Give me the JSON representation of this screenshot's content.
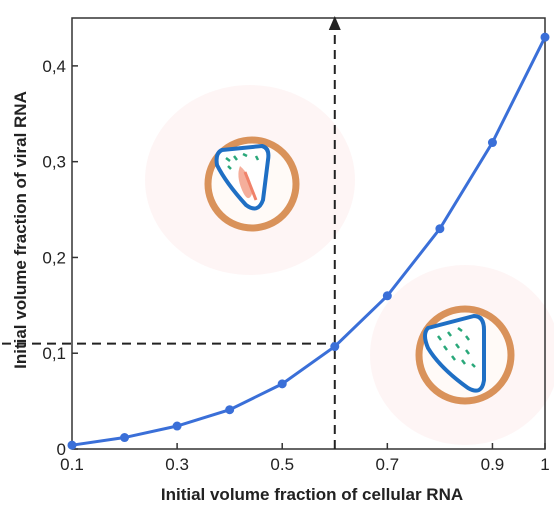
{
  "chart_data": {
    "type": "line",
    "xlabel": "Initial volume fraction of cellular RNA",
    "ylabel": "Initial volume fraction of viral RNA",
    "xlim": [
      0.1,
      1.0
    ],
    "ylim": [
      0,
      0.45
    ],
    "x_ticks": [
      "0.1",
      "0.3",
      "0.5",
      "0.7",
      "0.9",
      "1"
    ],
    "x_tick_values": [
      0.1,
      0.3,
      0.5,
      0.7,
      0.9,
      1.0
    ],
    "y_ticks": [
      "0",
      "0,1",
      "0,2",
      "0,3",
      "0,4"
    ],
    "y_tick_values": [
      0,
      0.1,
      0.2,
      0.3,
      0.4
    ],
    "grid": false,
    "series": [
      {
        "x": [
          0.1,
          0.2,
          0.3,
          0.4,
          0.5,
          0.6,
          0.7,
          0.8,
          0.9,
          1.0
        ],
        "y": [
          0.004,
          0.012,
          0.024,
          0.041,
          0.068,
          0.107,
          0.16,
          0.23,
          0.32,
          0.43
        ],
        "color": "#3a6fd8"
      }
    ],
    "annotation": {
      "x": 0.6,
      "y": 0.11,
      "style": "dashed crosshair",
      "arrow": "up"
    },
    "insets": [
      {
        "icon": "cell-with-cellular-rna-icon",
        "membrane_color": "#d9925a",
        "vesicle_color": "#1f6fc4",
        "cargo_colors": [
          "#f0826a",
          "#2aa87a"
        ]
      },
      {
        "icon": "cell-with-viral-rna-icon",
        "membrane_color": "#d9925a",
        "vesicle_color": "#1f6fc4",
        "cargo_colors": [
          "#2aa87a"
        ]
      }
    ]
  }
}
